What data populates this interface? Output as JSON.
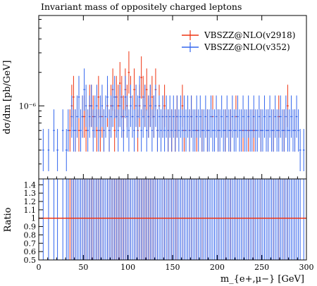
{
  "chart_data": {
    "type": "line",
    "title": "Invariant mass of oppositely charged leptons",
    "main_panel": {
      "ylabel": "dσ/dm [pb/GeV]",
      "yscale": "log",
      "ytick_label": "10⁻⁶",
      "ylim": [
        2.2e-07,
        6.5e-06
      ],
      "legend": "top-right"
    },
    "ratio_panel": {
      "ylabel": "Ratio",
      "ylim": [
        0.5,
        1.47
      ],
      "yticks": [
        "1.4",
        "1.3",
        "1.2",
        "1.1",
        "1",
        "0.9",
        "0.8",
        "0.7",
        "0.6",
        "0.5"
      ]
    },
    "xlabel": "m_{e+,μ−} [GeV]",
    "xlim": [
      0,
      300
    ],
    "xticks": [
      "0",
      "50",
      "100",
      "150",
      "200",
      "250",
      "300"
    ],
    "series": [
      {
        "name": "VBSZZ@NLO(v2918)",
        "color": "#ee3311",
        "bins": [
          [
            34,
            36,
            6e-07
          ],
          [
            36,
            38,
            1e-06
          ],
          [
            38,
            40,
            1.2e-06
          ],
          [
            40,
            42,
            6e-07
          ],
          [
            44,
            46,
            6e-07
          ],
          [
            48,
            50,
            8e-07
          ],
          [
            50,
            52,
            8e-07
          ],
          [
            52,
            54,
            6e-07
          ],
          [
            56,
            58,
            1e-06
          ],
          [
            58,
            60,
            1e-06
          ],
          [
            60,
            62,
            8e-07
          ],
          [
            64,
            66,
            6e-07
          ],
          [
            66,
            68,
            1.2e-06
          ],
          [
            68,
            70,
            6e-07
          ],
          [
            70,
            72,
            8e-07
          ],
          [
            72,
            74,
            6e-07
          ],
          [
            76,
            78,
            1e-06
          ],
          [
            78,
            80,
            6e-07
          ],
          [
            80,
            82,
            1e-06
          ],
          [
            82,
            84,
            1.4e-06
          ],
          [
            84,
            86,
            6e-07
          ],
          [
            86,
            88,
            1.2e-06
          ],
          [
            88,
            90,
            1e-06
          ],
          [
            90,
            92,
            1.6e-06
          ],
          [
            92,
            94,
            1.2e-06
          ],
          [
            94,
            96,
            8e-07
          ],
          [
            96,
            98,
            1.4e-06
          ],
          [
            98,
            100,
            1e-06
          ],
          [
            100,
            102,
            2e-06
          ],
          [
            102,
            104,
            1.2e-06
          ],
          [
            104,
            106,
            8e-07
          ],
          [
            106,
            108,
            1.4e-06
          ],
          [
            108,
            110,
            1e-06
          ],
          [
            110,
            112,
            6e-07
          ],
          [
            112,
            114,
            1e-06
          ],
          [
            114,
            116,
            1.8e-06
          ],
          [
            116,
            118,
            1.2e-06
          ],
          [
            118,
            120,
            1e-06
          ],
          [
            120,
            122,
            1.4e-06
          ],
          [
            122,
            124,
            8e-07
          ],
          [
            124,
            126,
            1e-06
          ],
          [
            126,
            128,
            1.2e-06
          ],
          [
            128,
            130,
            8e-07
          ],
          [
            130,
            132,
            1.4e-06
          ],
          [
            132,
            134,
            6e-07
          ],
          [
            134,
            136,
            1e-06
          ],
          [
            138,
            140,
            8e-07
          ],
          [
            140,
            142,
            1e-06
          ],
          [
            144,
            146,
            6e-07
          ],
          [
            148,
            150,
            6e-07
          ],
          [
            152,
            154,
            6e-07
          ],
          [
            154,
            156,
            8e-07
          ],
          [
            160,
            162,
            1e-06
          ],
          [
            162,
            164,
            6e-07
          ],
          [
            168,
            170,
            6e-07
          ],
          [
            170,
            172,
            8e-07
          ],
          [
            176,
            178,
            6e-07
          ],
          [
            182,
            184,
            6e-07
          ],
          [
            188,
            190,
            6e-07
          ],
          [
            194,
            196,
            8e-07
          ],
          [
            200,
            202,
            6e-07
          ],
          [
            208,
            210,
            6e-07
          ],
          [
            214,
            216,
            6e-07
          ],
          [
            220,
            222,
            8e-07
          ],
          [
            228,
            230,
            6e-07
          ],
          [
            234,
            236,
            6e-07
          ],
          [
            240,
            242,
            6e-07
          ],
          [
            248,
            250,
            6e-07
          ],
          [
            256,
            258,
            6e-07
          ],
          [
            262,
            264,
            6e-07
          ],
          [
            268,
            270,
            8e-07
          ],
          [
            274,
            276,
            6e-07
          ],
          [
            278,
            280,
            1e-06
          ],
          [
            286,
            288,
            6e-07
          ]
        ]
      },
      {
        "name": "VBSZZ@NLO(v352)",
        "color": "#3366ee",
        "bins": [
          [
            4,
            6,
            4e-07
          ],
          [
            10,
            12,
            4e-07
          ],
          [
            16,
            18,
            6e-07
          ],
          [
            20,
            22,
            4e-07
          ],
          [
            26,
            28,
            6e-07
          ],
          [
            30,
            32,
            4e-07
          ],
          [
            32,
            34,
            6e-07
          ],
          [
            36,
            38,
            8e-07
          ],
          [
            38,
            40,
            6e-07
          ],
          [
            40,
            42,
            6e-07
          ],
          [
            42,
            44,
            8e-07
          ],
          [
            44,
            46,
            1.2e-06
          ],
          [
            46,
            48,
            6e-07
          ],
          [
            48,
            50,
            8e-07
          ],
          [
            50,
            52,
            1.4e-06
          ],
          [
            52,
            54,
            1e-06
          ],
          [
            54,
            56,
            6e-07
          ],
          [
            56,
            58,
            8e-07
          ],
          [
            58,
            60,
            1e-06
          ],
          [
            60,
            62,
            6e-07
          ],
          [
            62,
            64,
            8e-07
          ],
          [
            64,
            66,
            1e-06
          ],
          [
            66,
            68,
            6e-07
          ],
          [
            68,
            70,
            8e-07
          ],
          [
            70,
            72,
            1e-06
          ],
          [
            72,
            74,
            6e-07
          ],
          [
            74,
            76,
            8e-07
          ],
          [
            76,
            78,
            1.2e-06
          ],
          [
            78,
            80,
            6e-07
          ],
          [
            80,
            82,
            8e-07
          ],
          [
            82,
            84,
            1e-06
          ],
          [
            84,
            86,
            1.2e-06
          ],
          [
            86,
            88,
            8e-07
          ],
          [
            88,
            90,
            6e-07
          ],
          [
            90,
            92,
            1e-06
          ],
          [
            92,
            94,
            8e-07
          ],
          [
            94,
            96,
            6e-07
          ],
          [
            96,
            98,
            1.2e-06
          ],
          [
            98,
            100,
            8e-07
          ],
          [
            100,
            102,
            6e-07
          ],
          [
            102,
            104,
            1e-06
          ],
          [
            104,
            106,
            8e-07
          ],
          [
            106,
            108,
            6e-07
          ],
          [
            108,
            110,
            1e-06
          ],
          [
            110,
            112,
            8e-07
          ],
          [
            112,
            114,
            1.2e-06
          ],
          [
            114,
            116,
            6e-07
          ],
          [
            116,
            118,
            8e-07
          ],
          [
            118,
            120,
            1e-06
          ],
          [
            120,
            122,
            6e-07
          ],
          [
            122,
            124,
            8e-07
          ],
          [
            124,
            126,
            1e-06
          ],
          [
            126,
            128,
            6e-07
          ],
          [
            128,
            130,
            8e-07
          ],
          [
            130,
            132,
            1e-06
          ],
          [
            132,
            134,
            6e-07
          ],
          [
            134,
            136,
            8e-07
          ],
          [
            136,
            138,
            6e-07
          ],
          [
            138,
            140,
            8e-07
          ],
          [
            140,
            142,
            6e-07
          ],
          [
            142,
            144,
            8e-07
          ],
          [
            144,
            146,
            6e-07
          ],
          [
            146,
            148,
            8e-07
          ],
          [
            148,
            150,
            6e-07
          ],
          [
            150,
            152,
            8e-07
          ],
          [
            152,
            154,
            6e-07
          ],
          [
            154,
            156,
            8e-07
          ],
          [
            156,
            158,
            6e-07
          ],
          [
            158,
            160,
            8e-07
          ],
          [
            160,
            162,
            6e-07
          ],
          [
            162,
            164,
            8e-07
          ],
          [
            164,
            166,
            6e-07
          ],
          [
            166,
            168,
            8e-07
          ],
          [
            168,
            170,
            6e-07
          ],
          [
            170,
            172,
            8e-07
          ],
          [
            172,
            174,
            6e-07
          ],
          [
            174,
            176,
            6e-07
          ],
          [
            176,
            178,
            8e-07
          ],
          [
            178,
            180,
            6e-07
          ],
          [
            180,
            182,
            8e-07
          ],
          [
            182,
            184,
            6e-07
          ],
          [
            184,
            186,
            6e-07
          ],
          [
            186,
            188,
            8e-07
          ],
          [
            188,
            190,
            6e-07
          ],
          [
            190,
            192,
            6e-07
          ],
          [
            192,
            194,
            8e-07
          ],
          [
            194,
            196,
            6e-07
          ],
          [
            196,
            198,
            6e-07
          ],
          [
            198,
            200,
            8e-07
          ],
          [
            200,
            202,
            6e-07
          ],
          [
            202,
            204,
            6e-07
          ],
          [
            204,
            206,
            8e-07
          ],
          [
            206,
            208,
            6e-07
          ],
          [
            208,
            210,
            6e-07
          ],
          [
            210,
            212,
            8e-07
          ],
          [
            212,
            214,
            6e-07
          ],
          [
            214,
            216,
            6e-07
          ],
          [
            216,
            218,
            8e-07
          ],
          [
            218,
            220,
            6e-07
          ],
          [
            220,
            222,
            6e-07
          ],
          [
            222,
            224,
            8e-07
          ],
          [
            224,
            226,
            6e-07
          ],
          [
            226,
            228,
            6e-07
          ],
          [
            228,
            230,
            8e-07
          ],
          [
            230,
            232,
            6e-07
          ],
          [
            232,
            234,
            6e-07
          ],
          [
            234,
            236,
            8e-07
          ],
          [
            236,
            238,
            6e-07
          ],
          [
            238,
            240,
            6e-07
          ],
          [
            240,
            242,
            8e-07
          ],
          [
            242,
            244,
            6e-07
          ],
          [
            244,
            246,
            6e-07
          ],
          [
            246,
            248,
            8e-07
          ],
          [
            248,
            250,
            6e-07
          ],
          [
            250,
            252,
            6e-07
          ],
          [
            252,
            254,
            8e-07
          ],
          [
            254,
            256,
            6e-07
          ],
          [
            256,
            258,
            6e-07
          ],
          [
            258,
            260,
            8e-07
          ],
          [
            260,
            262,
            6e-07
          ],
          [
            262,
            264,
            6e-07
          ],
          [
            264,
            266,
            8e-07
          ],
          [
            266,
            268,
            6e-07
          ],
          [
            268,
            270,
            6e-07
          ],
          [
            270,
            272,
            8e-07
          ],
          [
            272,
            274,
            6e-07
          ],
          [
            274,
            276,
            6e-07
          ],
          [
            276,
            278,
            8e-07
          ],
          [
            278,
            280,
            6e-07
          ],
          [
            280,
            282,
            6e-07
          ],
          [
            282,
            284,
            8e-07
          ],
          [
            284,
            286,
            6e-07
          ],
          [
            286,
            288,
            6e-07
          ],
          [
            288,
            290,
            8e-07
          ],
          [
            290,
            292,
            6e-07
          ],
          [
            292,
            294,
            4e-07
          ],
          [
            296,
            298,
            4e-07
          ]
        ]
      }
    ]
  }
}
